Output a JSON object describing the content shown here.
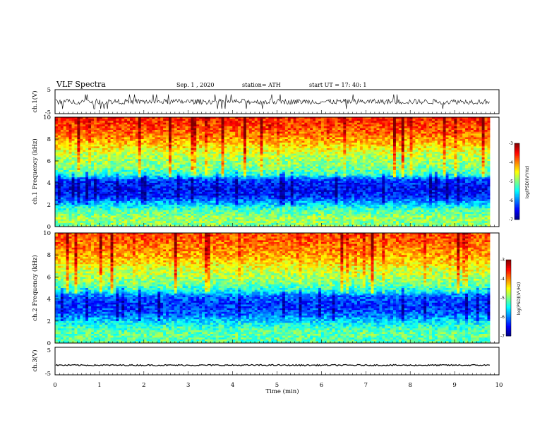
{
  "header": {
    "title": "VLF Spectra",
    "date": "Sep. 1 , 2020",
    "station": "station= ATH",
    "start": "start  UT =   17: 40: 1"
  },
  "chart_data": [
    {
      "type": "line",
      "name": "ch1-waveform",
      "ylabel": "ch.1(V)",
      "ylim": [
        -5,
        5
      ],
      "yticks": [
        "5",
        "-5"
      ],
      "xlim": [
        0,
        10
      ],
      "data_extent_min": 9.8,
      "signal": {
        "mean": 0,
        "range": [
          -3,
          3
        ]
      }
    },
    {
      "type": "heatmap",
      "name": "ch1-spectrogram",
      "ylabel": "ch.1 Frequency (kHz)",
      "ylim": [
        0,
        10
      ],
      "yticks": [
        "0",
        "2",
        "4",
        "6",
        "8",
        "10"
      ],
      "xlim": [
        0,
        10
      ],
      "data_extent_min": 9.8,
      "colorbar": {
        "label": "log(PSD)(V²/Hz)",
        "range": [
          -7,
          -3
        ],
        "ticks": [
          "-3",
          "-4",
          "-5",
          "-6",
          "-7"
        ]
      },
      "profile": [
        {
          "f": 0.0,
          "v": -5.0
        },
        {
          "f": 0.8,
          "v": -4.9
        },
        {
          "f": 1.5,
          "v": -5.2
        },
        {
          "f": 2.2,
          "v": -5.8
        },
        {
          "f": 2.8,
          "v": -6.4
        },
        {
          "f": 3.5,
          "v": -6.5
        },
        {
          "f": 4.2,
          "v": -6.3
        },
        {
          "f": 4.8,
          "v": -5.3
        },
        {
          "f": 5.5,
          "v": -5.0
        },
        {
          "f": 6.5,
          "v": -4.8
        },
        {
          "f": 7.5,
          "v": -4.3
        },
        {
          "f": 8.5,
          "v": -3.9
        },
        {
          "f": 10.0,
          "v": -3.6
        }
      ]
    },
    {
      "type": "heatmap",
      "name": "ch2-spectrogram",
      "ylabel": "ch.2 Frequency (kHz)",
      "ylim": [
        0,
        10
      ],
      "yticks": [
        "0",
        "2",
        "4",
        "6",
        "8",
        "10"
      ],
      "xlim": [
        0,
        10
      ],
      "data_extent_min": 9.8,
      "colorbar": {
        "label": "log(PSD)(V²/Hz)",
        "range": [
          -7,
          -3
        ],
        "ticks": [
          "-3",
          "-4",
          "-5",
          "-6",
          "-7"
        ]
      },
      "profile": [
        {
          "f": 0.0,
          "v": -5.2
        },
        {
          "f": 0.8,
          "v": -5.1
        },
        {
          "f": 1.5,
          "v": -5.3
        },
        {
          "f": 2.2,
          "v": -5.8
        },
        {
          "f": 2.8,
          "v": -6.2
        },
        {
          "f": 3.5,
          "v": -6.3
        },
        {
          "f": 4.2,
          "v": -6.1
        },
        {
          "f": 4.8,
          "v": -5.4
        },
        {
          "f": 5.5,
          "v": -5.0
        },
        {
          "f": 6.5,
          "v": -4.7
        },
        {
          "f": 7.5,
          "v": -4.3
        },
        {
          "f": 8.5,
          "v": -4.0
        },
        {
          "f": 10.0,
          "v": -3.8
        }
      ]
    },
    {
      "type": "line",
      "name": "ch3-waveform",
      "ylabel": "ch.3(V)",
      "ylim": [
        -5,
        5
      ],
      "yticks": [
        "5",
        "-5"
      ],
      "xlim": [
        0,
        10
      ],
      "data_extent_min": 9.8,
      "signal": {
        "mean": -1.5,
        "range": [
          -2.2,
          -1.0
        ]
      }
    }
  ],
  "xaxis": {
    "label": "Time  (min)",
    "ticks": [
      "0",
      "1",
      "2",
      "3",
      "4",
      "5",
      "6",
      "7",
      "8",
      "9",
      "10"
    ]
  }
}
